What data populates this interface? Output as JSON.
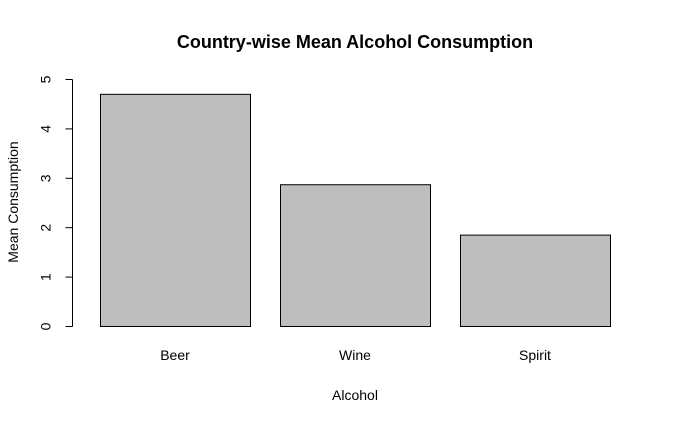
{
  "chart_data": {
    "type": "bar",
    "title": "Country-wise Mean Alcohol Consumption",
    "xlabel": "Alcohol",
    "ylabel": "Mean Consumption",
    "categories": [
      "Beer",
      "Wine",
      "Spirit"
    ],
    "values": [
      4.7,
      2.87,
      1.85
    ],
    "ylim": [
      0,
      5
    ],
    "yticks": [
      0,
      1,
      2,
      3,
      4,
      5
    ],
    "grid": false,
    "legend": "none",
    "colors": {
      "bar_fill": "#bebebe",
      "bar_stroke": "#000000",
      "axis": "#000000",
      "text": "#000000"
    }
  }
}
